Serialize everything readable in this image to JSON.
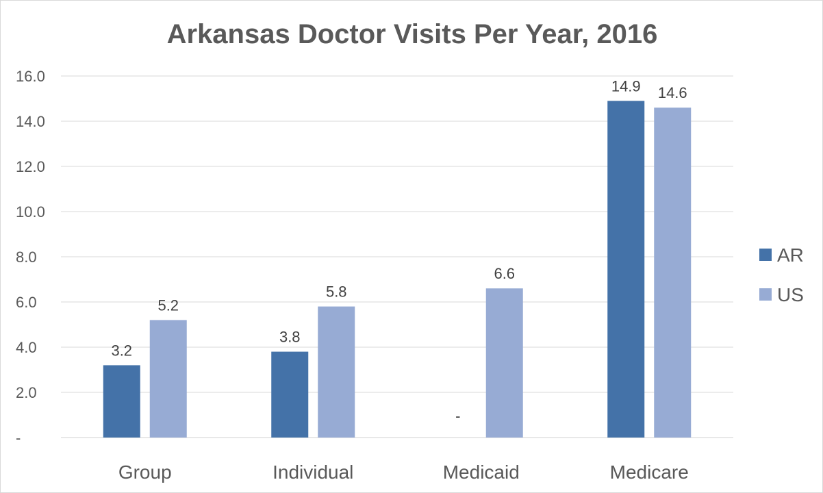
{
  "chart_data": {
    "type": "bar",
    "title": "Arkansas Doctor Visits Per Year, 2016",
    "xlabel": "",
    "ylabel": "",
    "categories": [
      "Group",
      "Individual",
      "Medicaid",
      "Medicare"
    ],
    "series": [
      {
        "name": "AR",
        "color": "#4472a8",
        "values": [
          3.2,
          3.8,
          null,
          14.9
        ],
        "labels": [
          "3.2",
          "3.8",
          "-",
          "14.9"
        ]
      },
      {
        "name": "US",
        "color": "#97abd4",
        "values": [
          5.2,
          5.8,
          6.6,
          14.6
        ],
        "labels": [
          "5.2",
          "5.8",
          "6.6",
          "14.6"
        ]
      }
    ],
    "ylim": [
      0,
      16
    ],
    "yticks": [
      0,
      2,
      4,
      6,
      8,
      10,
      12,
      14,
      16
    ],
    "ytick_labels": [
      "-",
      "2.0",
      "4.0",
      "6.0",
      "8.0",
      "10.0",
      "12.0",
      "14.0",
      "16.0"
    ],
    "grid": true,
    "legend_position": "right"
  }
}
